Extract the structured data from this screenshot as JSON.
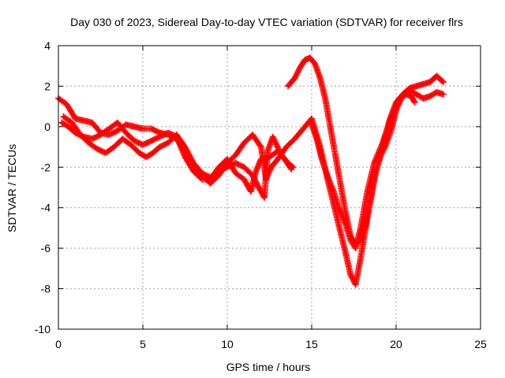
{
  "chart_data": {
    "type": "scatter",
    "title": "Day 030 of 2023, Sidereal Day-to-day VTEC variation (SDTVAR) for receiver flrs",
    "xlabel": "GPS time / hours",
    "ylabel": "SDTVAR / TECUs",
    "xlim": [
      0,
      25
    ],
    "ylim": [
      -10,
      4
    ],
    "xticks": [
      0,
      5,
      10,
      15,
      20,
      25
    ],
    "yticks": [
      -10,
      -8,
      -6,
      -4,
      -2,
      0,
      2,
      4
    ],
    "grid": true,
    "marker": "plus",
    "color": "#ff0000",
    "series": [
      {
        "points": [
          [
            0,
            1.4
          ],
          [
            0.5,
            1.1
          ],
          [
            1.0,
            0.4
          ],
          [
            1.5,
            0.3
          ],
          [
            2.0,
            0.2
          ],
          [
            2.5,
            -0.3
          ],
          [
            3.0,
            -0.4
          ],
          [
            3.5,
            -0.2
          ],
          [
            4.0,
            0.1
          ],
          [
            4.5,
            0.0
          ],
          [
            5.0,
            -0.1
          ],
          [
            5.5,
            -0.1
          ],
          [
            6.0,
            -0.3
          ],
          [
            6.5,
            -0.4
          ],
          [
            7.0,
            -0.6
          ],
          [
            7.5,
            -1.3
          ],
          [
            8.0,
            -2.0
          ],
          [
            8.5,
            -2.4
          ],
          [
            9.0,
            -2.8
          ],
          [
            9.5,
            -2.4
          ],
          [
            10.0,
            -1.8
          ],
          [
            10.5,
            -1.4
          ],
          [
            11.0,
            -0.8
          ],
          [
            11.5,
            -0.4
          ],
          [
            12.0,
            -1.0
          ],
          [
            12.3,
            -2.6
          ],
          [
            12.6,
            -2.0
          ],
          [
            13.0,
            -1.6
          ],
          [
            13.5,
            -1.0
          ],
          [
            14.0,
            -0.6
          ],
          [
            14.5,
            -0.1
          ],
          [
            15.0,
            0.4
          ],
          [
            15.5,
            -1.0
          ],
          [
            16.0,
            -2.8
          ],
          [
            16.5,
            -4.5
          ],
          [
            17.0,
            -6.2
          ],
          [
            17.3,
            -7.3
          ],
          [
            17.6,
            -7.8
          ],
          [
            17.9,
            -6.5
          ],
          [
            18.3,
            -4.5
          ],
          [
            18.7,
            -2.6
          ],
          [
            19.2,
            -1.0
          ],
          [
            19.6,
            0.3
          ],
          [
            20.0,
            1.2
          ],
          [
            20.4,
            1.6
          ],
          [
            20.8,
            1.8
          ],
          [
            21.2,
            1.6
          ],
          [
            21.6,
            1.4
          ],
          [
            22.0,
            1.5
          ],
          [
            22.4,
            1.7
          ],
          [
            22.8,
            1.6
          ]
        ]
      },
      {
        "points": [
          [
            0.3,
            0.5
          ],
          [
            0.8,
            0.2
          ],
          [
            1.3,
            -0.4
          ],
          [
            1.8,
            -0.8
          ],
          [
            2.3,
            -1.1
          ],
          [
            2.8,
            -1.3
          ],
          [
            3.3,
            -1.0
          ],
          [
            3.8,
            -0.6
          ],
          [
            4.3,
            -0.9
          ],
          [
            4.8,
            -1.3
          ],
          [
            5.2,
            -1.5
          ],
          [
            5.6,
            -1.3
          ],
          [
            6.0,
            -1.0
          ],
          [
            6.5,
            -0.8
          ],
          [
            7.0,
            -0.4
          ],
          [
            7.5,
            -1.0
          ],
          [
            8.0,
            -1.8
          ],
          [
            8.5,
            -2.3
          ],
          [
            9.0,
            -2.5
          ],
          [
            9.5,
            -2.2
          ],
          [
            10.0,
            -2.0
          ],
          [
            10.5,
            -1.8
          ],
          [
            11.0,
            -2.0
          ],
          [
            11.5,
            -2.4
          ],
          [
            11.8,
            -2.9
          ],
          [
            12.2,
            -3.5
          ],
          [
            12.4,
            -1.2
          ],
          [
            12.7,
            -0.5
          ],
          [
            13.2,
            -1.4
          ],
          [
            13.6,
            -1.8
          ],
          [
            13.9,
            -2.0
          ]
        ]
      },
      {
        "points": [
          [
            0.2,
            0.2
          ],
          [
            0.6,
            0.0
          ],
          [
            1.0,
            -0.3
          ],
          [
            1.5,
            -0.5
          ],
          [
            2.0,
            -0.6
          ],
          [
            2.5,
            -0.4
          ],
          [
            3.0,
            -0.1
          ],
          [
            3.5,
            0.2
          ],
          [
            4.0,
            -0.3
          ],
          [
            4.5,
            -0.7
          ],
          [
            5.0,
            -0.9
          ],
          [
            5.5,
            -0.7
          ],
          [
            6.0,
            -0.5
          ],
          [
            6.5,
            -0.3
          ],
          [
            7.0,
            -0.5
          ],
          [
            7.5,
            -1.5
          ],
          [
            8.0,
            -2.2
          ],
          [
            8.5,
            -2.6
          ],
          [
            9.0,
            -2.6
          ],
          [
            9.5,
            -2.0
          ],
          [
            10.0,
            -1.6
          ],
          [
            10.5,
            -2.3
          ],
          [
            11.0,
            -2.6
          ],
          [
            11.4,
            -3.2
          ],
          [
            11.7,
            -2.2
          ],
          [
            12.0,
            -1.6
          ],
          [
            12.5,
            -1.5
          ],
          [
            13.0,
            -1.2
          ],
          [
            13.4,
            -1.6
          ],
          [
            13.8,
            -2.1
          ]
        ]
      },
      {
        "points": [
          [
            13.6,
            2.0
          ],
          [
            14.0,
            2.4
          ],
          [
            14.3,
            2.9
          ],
          [
            14.6,
            3.3
          ],
          [
            14.9,
            3.4
          ],
          [
            15.2,
            3.1
          ],
          [
            15.5,
            2.4
          ],
          [
            15.8,
            1.4
          ],
          [
            16.1,
            0.0
          ],
          [
            16.4,
            -1.4
          ],
          [
            16.7,
            -2.8
          ],
          [
            17.0,
            -4.2
          ],
          [
            17.3,
            -5.4
          ],
          [
            17.6,
            -5.8
          ],
          [
            17.9,
            -5.6
          ],
          [
            18.2,
            -4.8
          ],
          [
            18.5,
            -3.6
          ],
          [
            18.8,
            -2.2
          ],
          [
            19.1,
            -1.4
          ],
          [
            19.4,
            -0.9
          ],
          [
            19.7,
            -0.2
          ],
          [
            20.0,
            0.8
          ],
          [
            20.3,
            1.4
          ],
          [
            20.6,
            1.6
          ],
          [
            20.9,
            1.5
          ],
          [
            21.1,
            1.2
          ]
        ]
      },
      {
        "points": [
          [
            15.0,
            0.1
          ],
          [
            15.3,
            -0.6
          ],
          [
            15.6,
            -1.6
          ],
          [
            16.0,
            -2.6
          ],
          [
            16.3,
            -3.2
          ],
          [
            16.6,
            -4.0
          ],
          [
            17.0,
            -4.8
          ],
          [
            17.3,
            -5.6
          ],
          [
            17.6,
            -6.0
          ],
          [
            17.9,
            -5.0
          ],
          [
            18.3,
            -3.2
          ],
          [
            18.7,
            -1.8
          ],
          [
            19.2,
            -0.8
          ],
          [
            19.6,
            0.2
          ],
          [
            20.0,
            1.0
          ],
          [
            20.4,
            1.6
          ],
          [
            20.8,
            1.9
          ],
          [
            21.2,
            2.0
          ],
          [
            21.6,
            2.1
          ],
          [
            22.0,
            2.2
          ],
          [
            22.4,
            2.5
          ],
          [
            22.8,
            2.2
          ]
        ]
      }
    ]
  }
}
